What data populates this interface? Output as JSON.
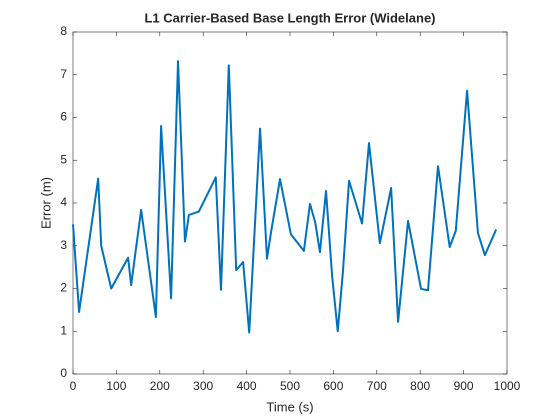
{
  "chart_data": {
    "type": "line",
    "title": "L1 Carrier-Based Base Length Error (Widelane)",
    "x_label": "Time (s)",
    "y_label": "Error (m)",
    "x": [
      0,
      14,
      58,
      65,
      88,
      127,
      134,
      157,
      191,
      203,
      226,
      242,
      258,
      267,
      290,
      329,
      341,
      359,
      376,
      392,
      406,
      431,
      447,
      456,
      477,
      502,
      532,
      546,
      558,
      569,
      583,
      597,
      610,
      622,
      636,
      666,
      682,
      707,
      733,
      749,
      772,
      802,
      818,
      841,
      868,
      882,
      908,
      933,
      949,
      975
    ],
    "series": [
      {
        "name": "Error",
        "color": "#0072bd",
        "values": [
          3.5,
          1.45,
          4.57,
          3.0,
          2.0,
          2.72,
          2.08,
          3.84,
          1.33,
          5.8,
          1.77,
          7.32,
          3.1,
          3.72,
          3.8,
          4.6,
          1.97,
          7.22,
          2.43,
          2.62,
          0.97,
          5.74,
          2.7,
          3.3,
          4.56,
          3.27,
          2.88,
          3.98,
          3.55,
          2.85,
          4.28,
          2.3,
          1.0,
          2.4,
          4.52,
          3.52,
          5.4,
          3.06,
          4.35,
          1.22,
          3.58,
          1.99,
          1.96,
          4.86,
          2.97,
          3.35,
          6.63,
          3.3,
          2.78,
          3.38
        ]
      }
    ],
    "xlim": [
      0,
      1000
    ],
    "xticks": [
      0,
      100,
      200,
      300,
      400,
      500,
      600,
      700,
      800,
      900,
      1000
    ],
    "ylim": [
      0,
      8
    ],
    "yticks": [
      0,
      1,
      2,
      3,
      4,
      5,
      6,
      7,
      8
    ]
  }
}
